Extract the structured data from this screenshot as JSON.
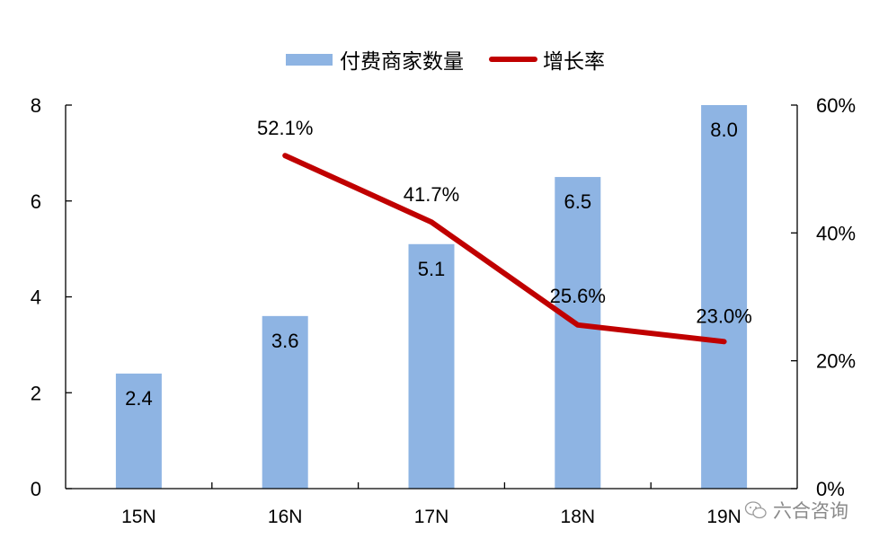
{
  "legend": {
    "bar_label": "付费商家数量",
    "line_label": "增长率"
  },
  "watermark": {
    "text": "六合咨询",
    "icon": "wechat-icon"
  },
  "colors": {
    "bar": "#8EB4E3",
    "line": "#C00000",
    "axis": "#000000"
  },
  "chart_data": {
    "type": "bar+line",
    "title": "",
    "categories": [
      "15N",
      "16N",
      "17N",
      "18N",
      "19N"
    ],
    "series": [
      {
        "name": "付费商家数量",
        "type": "bar",
        "axis": "left",
        "values": [
          2.4,
          3.6,
          5.1,
          6.5,
          8.0
        ],
        "labels": [
          "2.4",
          "3.6",
          "5.1",
          "6.5",
          "8.0"
        ]
      },
      {
        "name": "增长率",
        "type": "line",
        "axis": "right",
        "values": [
          null,
          52.1,
          41.7,
          25.6,
          23.0
        ],
        "labels": [
          "",
          "52.1%",
          "41.7%",
          "25.6%",
          "23.0%"
        ]
      }
    ],
    "xlabel": "",
    "ylabel": "",
    "y_left": {
      "ylim": [
        0,
        8
      ],
      "ticks": [
        "0",
        "2",
        "4",
        "6",
        "8"
      ]
    },
    "y_right": {
      "ylim": [
        0,
        60
      ],
      "ticks": [
        "0%",
        "20%",
        "40%",
        "60%"
      ]
    },
    "grid": false,
    "legend_position": "top"
  }
}
